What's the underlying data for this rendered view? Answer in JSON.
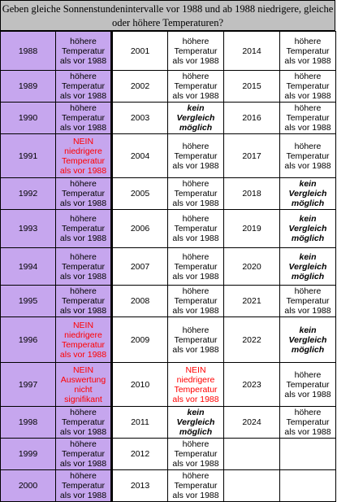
{
  "title": "Geben gleiche Sonnenstundenintervalle vor 1988 und ab 1988 niedrigere, gleiche oder höhere Temperaturen?",
  "colors": {
    "purple": "#c6a6ee",
    "header_gray": "#c0c0c0",
    "red": "#ff0000",
    "black": "#000000"
  },
  "rows": [
    {
      "c1": {
        "year": "1988",
        "text": "höhere\nTemperatur\nals vor 1988",
        "style": "black"
      },
      "c2": {
        "year": "2001",
        "text": "höhere\nTemperatur\nals vor 1988",
        "style": "black"
      },
      "c3": {
        "year": "2014",
        "text": "höhere\nTemperatur\nals vor 1988",
        "style": "black"
      }
    },
    {
      "c1": {
        "year": "1989",
        "text": "höhere\nTemperatur\nals vor 1988",
        "style": "black"
      },
      "c2": {
        "year": "2002",
        "text": "höhere\nTemperatur\nals vor 1988",
        "style": "black"
      },
      "c3": {
        "year": "2015",
        "text": "höhere\nTemperatur\nals vor 1988",
        "style": "black"
      }
    },
    {
      "c1": {
        "year": "1990",
        "text": "höhere\nTemperatur\nals vor 1988",
        "style": "black"
      },
      "c2": {
        "year": "2003",
        "text": "kein\nVergleich\nmöglich",
        "style": "bold"
      },
      "c3": {
        "year": "2016",
        "text": "höhere\nTemperatur\nals vor 1988",
        "style": "black"
      }
    },
    {
      "c1": {
        "year": "1991",
        "text": "NEIN\nniedrigere\nTemperatur\nals vor 1988",
        "style": "red"
      },
      "c2": {
        "year": "2004",
        "text": "höhere\nTemperatur\nals vor 1988",
        "style": "black"
      },
      "c3": {
        "year": "2017",
        "text": "höhere\nTemperatur\nals vor 1988",
        "style": "black"
      }
    },
    {
      "c1": {
        "year": "1992",
        "text": "höhere\nTemperatur\nals vor 1988",
        "style": "black"
      },
      "c2": {
        "year": "2005",
        "text": "höhere\nTemperatur\nals vor 1988",
        "style": "black"
      },
      "c3": {
        "year": "2018",
        "text": "kein\nVergleich\nmöglich",
        "style": "bold"
      }
    },
    {
      "c1": {
        "year": "1993",
        "text": "höhere\nTemperatur\nals vor 1988",
        "style": "black"
      },
      "c2": {
        "year": "2006",
        "text": "höhere\nTemperatur\nals vor 1988",
        "style": "black"
      },
      "c3": {
        "year": "2019",
        "text": "kein\nVergleich\nmöglich",
        "style": "bold"
      }
    },
    {
      "c1": {
        "year": "1994",
        "text": "höhere\nTemperatur\nals vor 1988",
        "style": "black"
      },
      "c2": {
        "year": "2007",
        "text": "höhere\nTemperatur\nals vor 1988",
        "style": "black"
      },
      "c3": {
        "year": "2020",
        "text": "kein\nVergleich\nmöglich",
        "style": "bold"
      }
    },
    {
      "c1": {
        "year": "1995",
        "text": "höhere\nTemperatur\nals vor 1988",
        "style": "black"
      },
      "c2": {
        "year": "2008",
        "text": "höhere\nTemperatur\nals vor 1988",
        "style": "black"
      },
      "c3": {
        "year": "2021",
        "text": "höhere\nTemperatur\nals vor 1988",
        "style": "black"
      }
    },
    {
      "c1": {
        "year": "1996",
        "text": "NEIN\nniedrigere\nTemperatur\nals vor 1988",
        "style": "red"
      },
      "c2": {
        "year": "2009",
        "text": "höhere\nTemperatur\nals vor 1988",
        "style": "black"
      },
      "c3": {
        "year": "2022",
        "text": "kein\nVergleich\nmöglich",
        "style": "bold"
      }
    },
    {
      "c1": {
        "year": "1997",
        "text": "NEIN\nAuswertung\nnicht\nsignifikant",
        "style": "red"
      },
      "c2": {
        "year": "2010",
        "text": "NEIN\nniedrigere\nTemperatur\nals vor 1988",
        "style": "red"
      },
      "c3": {
        "year": "2023",
        "text": "höhere\nTemperatur\nals vor 1988",
        "style": "black"
      }
    },
    {
      "c1": {
        "year": "1998",
        "text": "höhere\nTemperatur\nals vor 1988",
        "style": "black"
      },
      "c2": {
        "year": "2011",
        "text": "kein\nVergleich\nmöglich",
        "style": "bold"
      },
      "c3": {
        "year": "2024",
        "text": "höhere\nTemperatur\nals vor 1988",
        "style": "black"
      }
    },
    {
      "c1": {
        "year": "1999",
        "text": "höhere\nTemperatur\nals vor 1988",
        "style": "black"
      },
      "c2": {
        "year": "2012",
        "text": "höhere\nTemperatur\nals vor 1988",
        "style": "black"
      },
      "c3": {
        "year": "",
        "text": "",
        "style": "black"
      }
    },
    {
      "c1": {
        "year": "2000",
        "text": "höhere\nTemperatur\nals vor 1988",
        "style": "black"
      },
      "c2": {
        "year": "2013",
        "text": "höhere\nTemperatur\nals vor 1988",
        "style": "black"
      },
      "c3": {
        "year": "",
        "text": "",
        "style": "black"
      }
    }
  ]
}
